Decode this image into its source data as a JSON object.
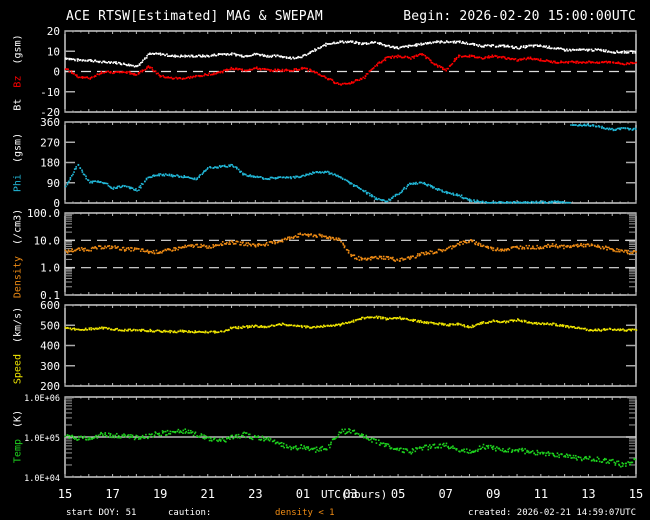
{
  "header": {
    "title": "ACE RTSW[Estimated] MAG & SWEPAM",
    "begin": "Begin: 2026-02-20 15:00:00UTC"
  },
  "footer": {
    "start_doy": "start DOY:  51",
    "caution_label": "caution:",
    "caution_value": "density < 1",
    "created": "created: 2026-02-21 14:59:07UTC"
  },
  "colors": {
    "background": "#000000",
    "frame": "#ffffff",
    "bt": "#ffffff",
    "bz": "#ff0000",
    "phi": "#22b8d8",
    "density": "#f08c14",
    "speed": "#f0e600",
    "temp": "#1ed21e",
    "caution": "#f08c14"
  },
  "chart_data": {
    "type": "scatter",
    "title": "ACE RTSW[Estimated] MAG & SWEPAM",
    "xlabel": "UTC(hours)",
    "x_tick_labels": [
      "15",
      "17",
      "19",
      "21",
      "23",
      "01",
      "03",
      "05",
      "07",
      "09",
      "11",
      "13",
      "15"
    ],
    "x_range_hours": [
      0,
      24
    ],
    "panels": [
      {
        "name": "Bt Bz",
        "label": "Bt",
        "label2": "Bz",
        "unit": "(gsm)",
        "scale": "linear",
        "ylim": [
          -20,
          20
        ],
        "y_ticks": [
          "20",
          "10",
          "0",
          "-10",
          "-20"
        ],
        "tick_values": [
          20,
          10,
          0,
          -10,
          -20
        ],
        "dashed_lines": [
          0
        ],
        "series": [
          {
            "name": "Bt",
            "color": "#ffffff",
            "x": [
              0,
              0.5,
              1,
              1.5,
              2,
              2.5,
              3,
              3.5,
              4,
              4.5,
              5,
              5.5,
              6,
              6.5,
              7,
              7.5,
              8,
              8.5,
              9,
              9.5,
              10,
              10.5,
              11,
              11.5,
              12,
              12.5,
              13,
              13.5,
              14,
              14.5,
              15,
              15.5,
              16,
              16.5,
              17,
              17.5,
              18,
              18.5,
              19,
              19.5,
              20,
              20.5,
              21,
              21.5,
              22,
              22.5,
              23,
              23.5,
              24
            ],
            "y": [
              7,
              6,
              6,
              5,
              5,
              4,
              3,
              9,
              9,
              8,
              8,
              8,
              8,
              9,
              9,
              8,
              9,
              8,
              8,
              7,
              8,
              11,
              14,
              15,
              15,
              14,
              15,
              13,
              12,
              13,
              14,
              15,
              15,
              15,
              14,
              13,
              13,
              13,
              12,
              13,
              13,
              12,
              11,
              11,
              11,
              11,
              10,
              10,
              10
            ]
          },
          {
            "name": "Bz",
            "color": "#ff0000",
            "x": [
              0,
              0.5,
              1,
              1.5,
              2,
              2.5,
              3,
              3.5,
              4,
              4.5,
              5,
              5.5,
              6,
              6.5,
              7,
              7.5,
              8,
              8.5,
              9,
              9.5,
              10,
              10.5,
              11,
              11.5,
              12,
              12.5,
              13,
              13.5,
              14,
              14.5,
              15,
              15.5,
              16,
              16.5,
              17,
              17.5,
              18,
              18.5,
              19,
              19.5,
              20,
              20.5,
              21,
              21.5,
              22,
              22.5,
              23,
              23.5,
              24
            ],
            "y": [
              2,
              -2,
              -3,
              0,
              0,
              0,
              -1,
              3,
              -2,
              -3,
              -3,
              -2,
              -1,
              0,
              2,
              1,
              2,
              1,
              1,
              1,
              2,
              0,
              -3,
              -6,
              -5,
              -3,
              3,
              7,
              8,
              7,
              9,
              4,
              1,
              8,
              8,
              7,
              8,
              7,
              6,
              7,
              6,
              5,
              5,
              5,
              5,
              5,
              5,
              4,
              5
            ]
          }
        ]
      },
      {
        "name": "Phi",
        "label": "Phi",
        "unit": "(gsm)",
        "scale": "linear",
        "ylim": [
          0,
          360
        ],
        "y_ticks": [
          "360",
          "270",
          "180",
          "90",
          "0"
        ],
        "tick_values": [
          360,
          270,
          180,
          90,
          0
        ],
        "dashed_lines": [],
        "series": [
          {
            "name": "Phi",
            "color": "#22b8d8",
            "x": [
              0,
              0.5,
              1,
              1.5,
              2,
              2.5,
              3,
              3.5,
              4,
              4.5,
              5,
              5.5,
              6,
              6.5,
              7,
              7.5,
              8,
              8.5,
              9,
              9.5,
              10,
              10.5,
              11,
              11.5,
              12,
              12.5,
              13,
              13.5,
              14,
              14.5,
              15,
              15.5,
              16,
              16.5,
              17,
              17.5,
              18,
              18.5,
              19,
              19.5,
              20,
              20.5,
              21,
              21.5,
              22,
              22.5,
              23,
              23.5,
              24
            ],
            "y": [
              75,
              175,
              95,
              100,
              70,
              80,
              60,
              120,
              130,
              125,
              120,
              110,
              160,
              165,
              170,
              130,
              120,
              110,
              120,
              115,
              125,
              140,
              140,
              120,
              90,
              60,
              25,
              10,
              45,
              90,
              95,
              70,
              50,
              40,
              15,
              8,
              5,
              5,
              5,
              5,
              8,
              8,
              5,
              350,
              350,
              340,
              330,
              335,
              330
            ]
          }
        ]
      },
      {
        "name": "Density",
        "label": "Density",
        "unit": "(/cm3)",
        "scale": "log",
        "ylim": [
          0.1,
          100
        ],
        "y_ticks": [
          "100.0",
          "10.0",
          "1.0",
          "0.1"
        ],
        "tick_values": [
          100,
          10,
          1,
          0.1
        ],
        "dashed_lines": [
          10,
          1
        ],
        "series": [
          {
            "name": "Density",
            "color": "#f08c14",
            "x": [
              0,
              0.5,
              1,
              1.5,
              2,
              2.5,
              3,
              3.5,
              4,
              4.5,
              5,
              5.5,
              6,
              6.5,
              7,
              7.5,
              8,
              8.5,
              9,
              9.5,
              10,
              10.5,
              11,
              11.5,
              12,
              12.5,
              13,
              13.5,
              14,
              14.5,
              15,
              15.5,
              16,
              16.5,
              17,
              17.5,
              18,
              18.5,
              19,
              19.5,
              20,
              20.5,
              21,
              21.5,
              22,
              22.5,
              23,
              23.5,
              24
            ],
            "y": [
              4,
              5,
              5,
              6,
              6,
              5,
              5,
              4,
              4,
              5,
              6,
              7,
              6,
              8,
              9,
              8,
              7,
              8,
              10,
              14,
              18,
              16,
              14,
              12,
              3,
              2,
              2.5,
              2.5,
              2,
              2.5,
              3.5,
              4,
              5,
              8,
              10,
              7,
              5,
              5,
              6,
              6,
              6,
              7,
              6,
              7,
              7,
              6,
              5,
              4,
              4
            ]
          }
        ]
      },
      {
        "name": "Speed",
        "label": "Speed",
        "unit": "(km/s)",
        "scale": "linear",
        "ylim": [
          200,
          600
        ],
        "y_ticks": [
          "600",
          "500",
          "400",
          "300",
          "200"
        ],
        "tick_values": [
          600,
          500,
          400,
          300,
          200
        ],
        "dashed_lines": [],
        "series": [
          {
            "name": "Speed",
            "color": "#f0e600",
            "x": [
              0,
              0.5,
              1,
              1.5,
              2,
              2.5,
              3,
              3.5,
              4,
              4.5,
              5,
              5.5,
              6,
              6.5,
              7,
              7.5,
              8,
              8.5,
              9,
              9.5,
              10,
              10.5,
              11,
              11.5,
              12,
              12.5,
              13,
              13.5,
              14,
              14.5,
              15,
              15.5,
              16,
              16.5,
              17,
              17.5,
              18,
              18.5,
              19,
              19.5,
              20,
              20.5,
              21,
              21.5,
              22,
              22.5,
              23,
              23.5,
              24
            ],
            "y": [
              495,
              480,
              485,
              490,
              485,
              480,
              480,
              478,
              475,
              472,
              475,
              470,
              472,
              470,
              490,
              495,
              500,
              495,
              510,
              505,
              495,
              495,
              500,
              505,
              520,
              540,
              545,
              535,
              540,
              530,
              520,
              515,
              505,
              510,
              495,
              515,
              525,
              520,
              530,
              515,
              510,
              510,
              500,
              490,
              480,
              480,
              485,
              480,
              480
            ]
          }
        ]
      },
      {
        "name": "Temp",
        "label": "Temp",
        "unit": "(K)",
        "scale": "log",
        "ylim": [
          10000,
          1000000
        ],
        "y_ticks": [
          "1.0E+06",
          "1.0E+05",
          "1.0E+04"
        ],
        "tick_values": [
          1000000,
          100000,
          10000
        ],
        "dashed_lines": [
          100000
        ],
        "solid_lines": [
          100000
        ],
        "series": [
          {
            "name": "Temp",
            "color": "#1ed21e",
            "x": [
              0,
              0.5,
              1,
              1.5,
              2,
              2.5,
              3,
              3.5,
              4,
              4.5,
              5,
              5.5,
              6,
              6.5,
              7,
              7.5,
              8,
              8.5,
              9,
              9.5,
              10,
              10.5,
              11,
              11.5,
              12,
              12.5,
              13,
              13.5,
              14,
              14.5,
              15,
              15.5,
              16,
              16.5,
              17,
              17.5,
              18,
              18.5,
              19,
              19.5,
              20,
              20.5,
              21,
              21.5,
              22,
              22.5,
              23,
              23.5,
              24
            ],
            "y": [
              110000,
              100000,
              95000,
              120000,
              110000,
              115000,
              100000,
              110000,
              130000,
              140000,
              150000,
              120000,
              90000,
              85000,
              100000,
              120000,
              100000,
              90000,
              70000,
              55000,
              60000,
              50000,
              55000,
              140000,
              150000,
              120000,
              80000,
              65000,
              50000,
              45000,
              55000,
              60000,
              65000,
              50000,
              45000,
              60000,
              55000,
              50000,
              48000,
              45000,
              40000,
              38000,
              35000,
              32000,
              30000,
              28000,
              25000,
              20000,
              30000
            ]
          }
        ]
      }
    ]
  }
}
